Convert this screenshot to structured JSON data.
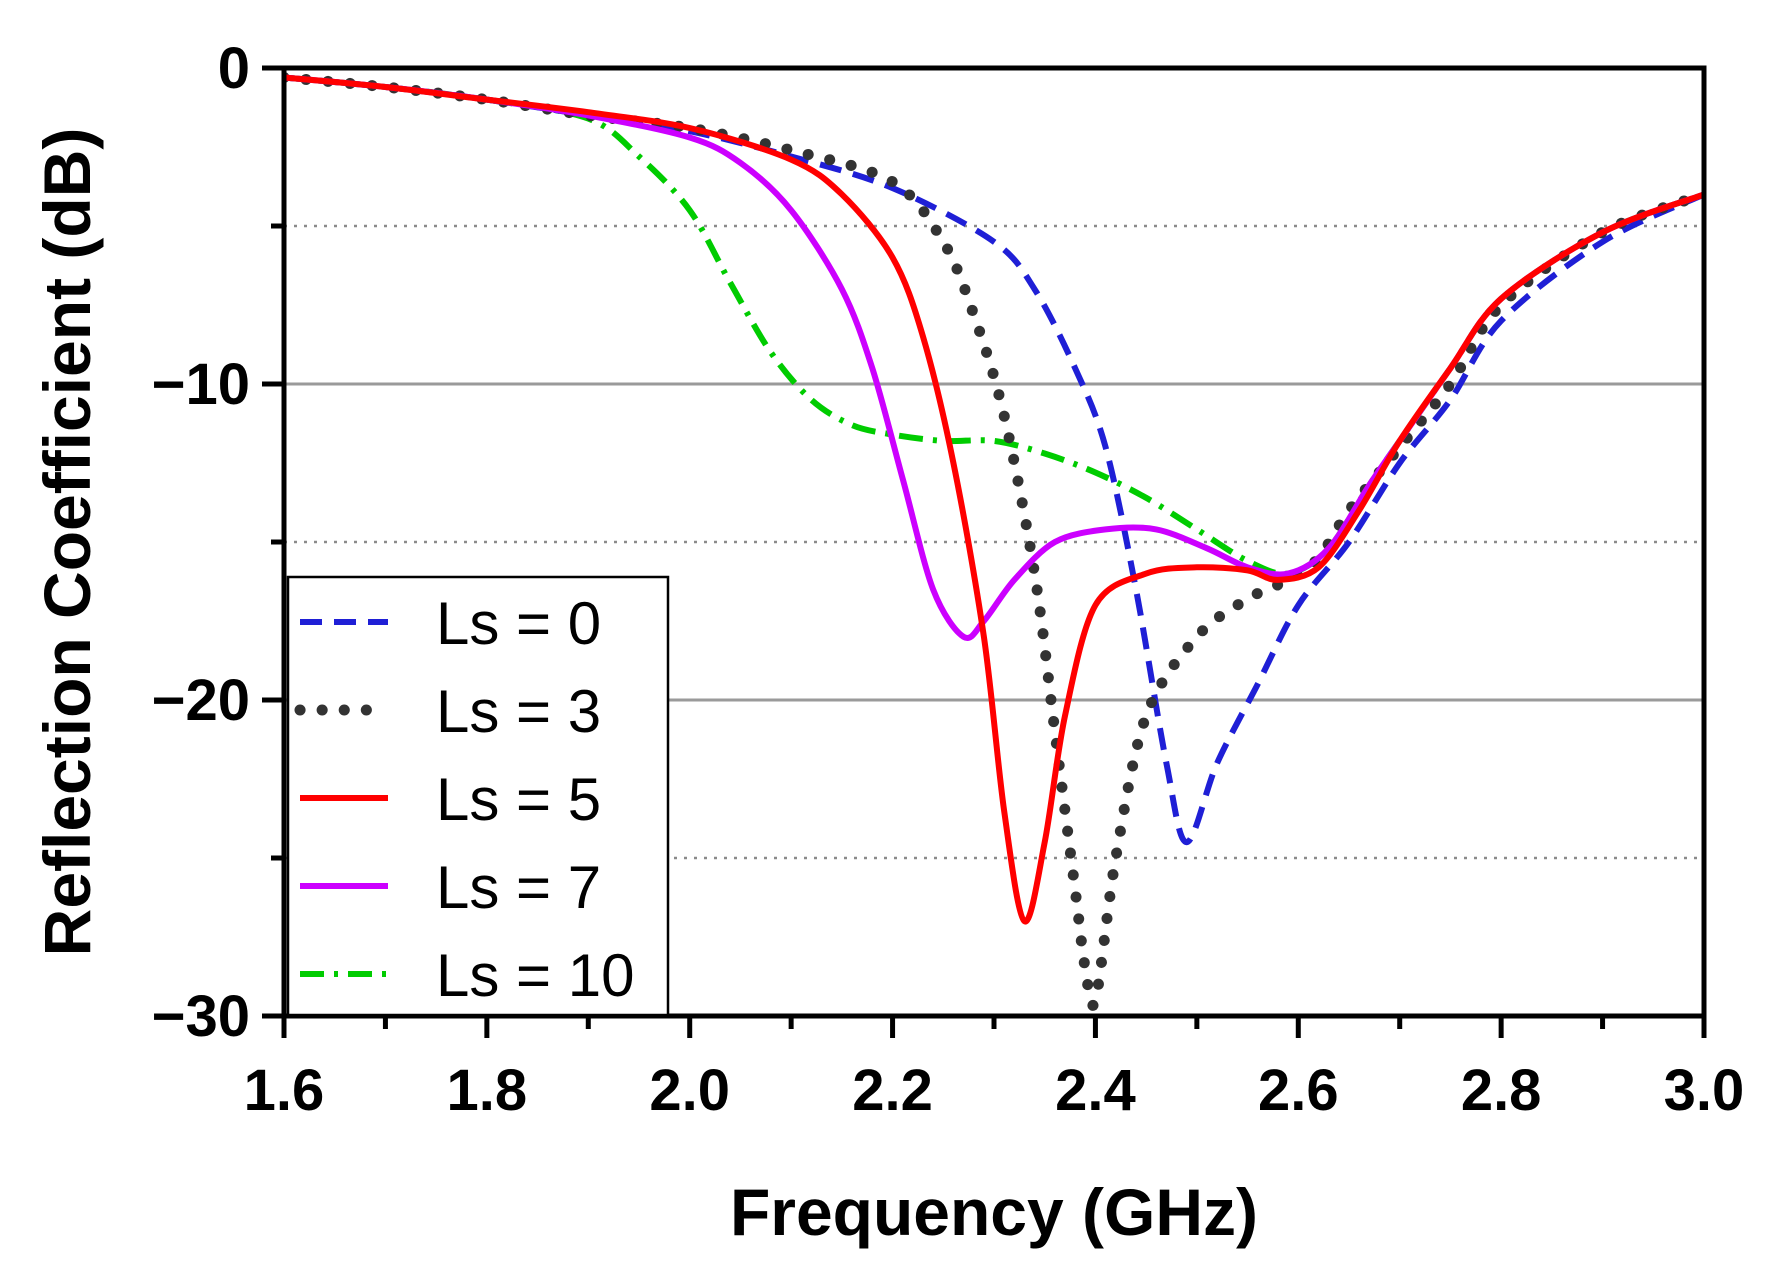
{
  "chart_data": {
    "type": "line",
    "title": "",
    "xlabel": "Frequency (GHz)",
    "ylabel": "Reflection Coefficient (dB)",
    "xlim": [
      1.6,
      3.0
    ],
    "ylim": [
      -30,
      0
    ],
    "xticks": [
      "1.6",
      "1.8",
      "2.0",
      "2.2",
      "2.4",
      "2.6",
      "2.8",
      "3.0"
    ],
    "yticks": [
      "0",
      "−10",
      "−20",
      "−30"
    ],
    "legend_position": "lower-left",
    "grid": "horizontal",
    "series": [
      {
        "name": "Ls = 0",
        "color": "#1f1fd6",
        "style": "dashed",
        "x": [
          1.6,
          1.7,
          1.8,
          1.9,
          2.0,
          2.1,
          2.2,
          2.3,
          2.34,
          2.38,
          2.41,
          2.44,
          2.47,
          2.49,
          2.52,
          2.56,
          2.6,
          2.65,
          2.7,
          2.75,
          2.8,
          2.9,
          3.0
        ],
        "y": [
          -0.3,
          -0.6,
          -1.0,
          -1.5,
          -2.0,
          -2.8,
          -3.8,
          -5.5,
          -7.0,
          -9.5,
          -12.0,
          -16.5,
          -22.0,
          -24.5,
          -22.0,
          -19.5,
          -17.0,
          -15.0,
          -12.5,
          -10.5,
          -8.0,
          -5.5,
          -4.0
        ]
      },
      {
        "name": "Ls = 3",
        "color": "#333333",
        "style": "dotted",
        "x": [
          1.6,
          1.7,
          1.8,
          1.9,
          2.0,
          2.1,
          2.2,
          2.25,
          2.28,
          2.31,
          2.34,
          2.36,
          2.38,
          2.39,
          2.4,
          2.42,
          2.45,
          2.5,
          2.55,
          2.59,
          2.62,
          2.65,
          2.7,
          2.75,
          2.8,
          2.9,
          3.0
        ],
        "y": [
          -0.3,
          -0.6,
          -1.0,
          -1.5,
          -1.9,
          -2.6,
          -3.6,
          -5.5,
          -7.8,
          -11.0,
          -16.0,
          -21.0,
          -26.0,
          -28.5,
          -29.5,
          -25.0,
          -20.5,
          -18.0,
          -16.8,
          -16.2,
          -15.5,
          -14.0,
          -12.0,
          -10.0,
          -7.5,
          -5.2,
          -4.0
        ]
      },
      {
        "name": "Ls = 5",
        "color": "#ff0000",
        "style": "solid",
        "x": [
          1.6,
          1.7,
          1.8,
          1.9,
          2.0,
          2.1,
          2.15,
          2.2,
          2.23,
          2.26,
          2.29,
          2.31,
          2.33,
          2.35,
          2.37,
          2.4,
          2.45,
          2.5,
          2.55,
          2.58,
          2.62,
          2.66,
          2.7,
          2.75,
          2.8,
          2.9,
          3.0
        ],
        "y": [
          -0.3,
          -0.6,
          -1.0,
          -1.4,
          -1.9,
          -2.9,
          -4.0,
          -6.0,
          -8.5,
          -12.5,
          -18.0,
          -23.5,
          -27.0,
          -24.5,
          -20.5,
          -17.0,
          -16.0,
          -15.8,
          -15.9,
          -16.2,
          -15.8,
          -14.0,
          -11.8,
          -9.5,
          -7.3,
          -5.2,
          -4.0
        ]
      },
      {
        "name": "Ls = 7",
        "color": "#cc00ff",
        "style": "solid",
        "x": [
          1.6,
          1.7,
          1.8,
          1.9,
          2.0,
          2.05,
          2.1,
          2.15,
          2.18,
          2.21,
          2.24,
          2.27,
          2.29,
          2.32,
          2.36,
          2.41,
          2.46,
          2.51,
          2.55,
          2.59,
          2.63,
          2.67,
          2.7,
          2.75,
          2.8,
          2.9,
          3.0
        ],
        "y": [
          -0.3,
          -0.6,
          -1.0,
          -1.5,
          -2.2,
          -3.0,
          -4.5,
          -7.0,
          -9.5,
          -13.0,
          -16.5,
          -18.0,
          -17.5,
          -16.2,
          -15.0,
          -14.6,
          -14.6,
          -15.2,
          -15.8,
          -16.0,
          -15.2,
          -13.2,
          -11.8,
          -9.5,
          -7.3,
          -5.2,
          -4.0
        ]
      },
      {
        "name": "Ls = 10",
        "color": "#00cc00",
        "style": "dashdot",
        "x": [
          1.6,
          1.7,
          1.8,
          1.9,
          1.95,
          2.0,
          2.04,
          2.08,
          2.12,
          2.16,
          2.2,
          2.25,
          2.3,
          2.35,
          2.4,
          2.45,
          2.5,
          2.55,
          2.59,
          2.63,
          2.67,
          2.7,
          2.75,
          2.8,
          2.9,
          3.0
        ],
        "y": [
          -0.3,
          -0.6,
          -1.0,
          -1.6,
          -2.8,
          -4.5,
          -6.8,
          -9.0,
          -10.5,
          -11.3,
          -11.6,
          -11.8,
          -11.8,
          -12.2,
          -12.8,
          -13.6,
          -14.6,
          -15.6,
          -16.0,
          -15.2,
          -13.2,
          -11.8,
          -9.5,
          -7.3,
          -5.2,
          -4.0
        ]
      }
    ]
  }
}
